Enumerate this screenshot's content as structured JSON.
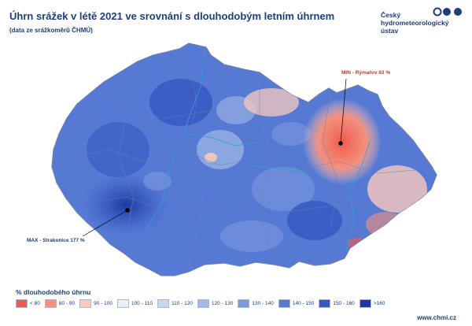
{
  "header": {
    "title": "Úhrn srážek v létě 2021 ve srovnání s dlouhodobým letním úhrnem",
    "subtitle": "(data ze srážkoměrů ČHMÚ)"
  },
  "logo": {
    "line1": "Český",
    "line2": "hydrometeorologický",
    "line3": "ústav",
    "icon": "chmu-logo-icon"
  },
  "annotations": {
    "min": {
      "label": "MIN - Rýmařov 63 %",
      "color": "#c0392b"
    },
    "max": {
      "label": "MAX - Strakonice 177 %",
      "color": "#1f3e79"
    }
  },
  "legend": {
    "title": "% dlouhodobého úhrnu",
    "items": [
      {
        "label": "< 80",
        "color": "#ef5b4d"
      },
      {
        "label": "80 - 90",
        "color": "#f4907e"
      },
      {
        "label": "90 - 100",
        "color": "#f9c9bd"
      },
      {
        "label": "100 - 110",
        "color": "#e9eef8"
      },
      {
        "label": "110 - 120",
        "color": "#c9d6f0"
      },
      {
        "label": "120 - 130",
        "color": "#a4b9e8"
      },
      {
        "label": "130 - 140",
        "color": "#7c99df"
      },
      {
        "label": "140 - 150",
        "color": "#5679d4"
      },
      {
        "label": "150 - 160",
        "color": "#3558c2"
      },
      {
        "label": ">160",
        "color": "#1c38a2"
      }
    ]
  },
  "footer": {
    "website": "www.chmi.cz"
  }
}
